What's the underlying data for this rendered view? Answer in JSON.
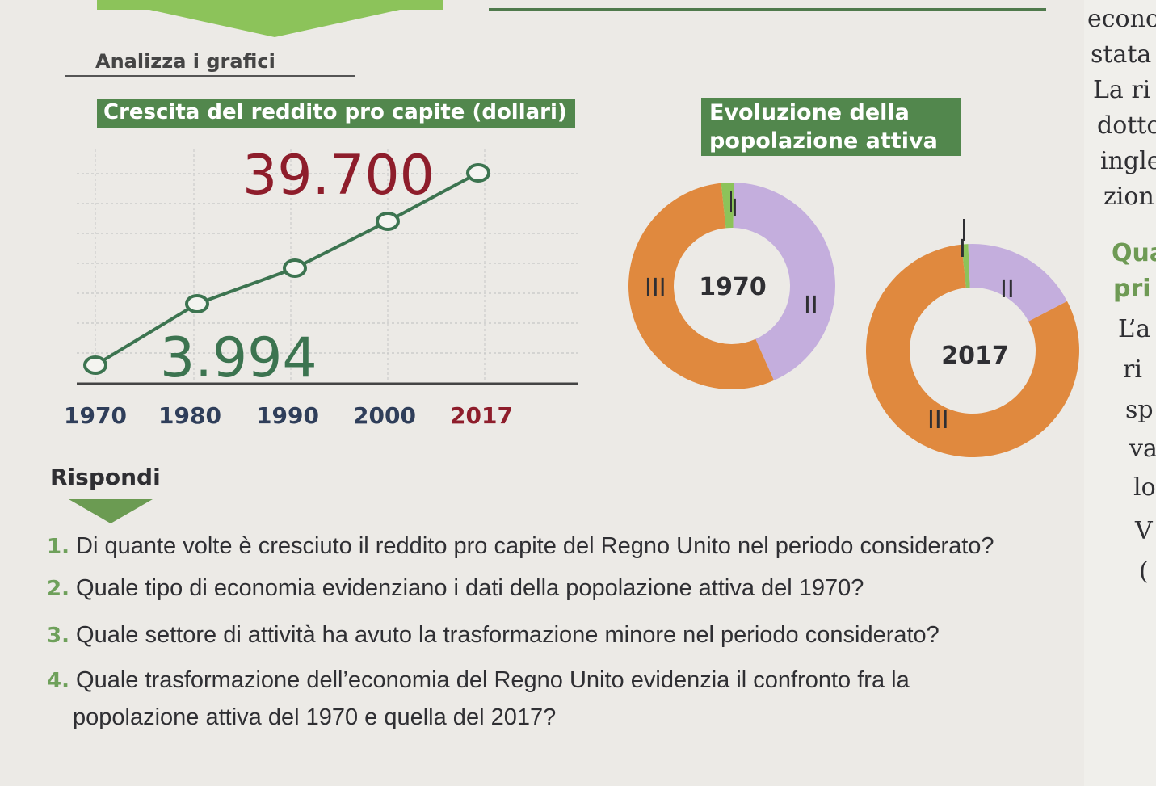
{
  "section": {
    "title": "Analizza i grafici"
  },
  "income_chart": {
    "title": "Crescita del reddito pro capite (dollari)",
    "label_start": "3.994",
    "label_end": "39.700"
  },
  "population_chart": {
    "title_line1": "Evoluzione della",
    "title_line2": "popolazione attiva",
    "donut_1970": {
      "year": "1970",
      "marks": [
        "I",
        "II",
        "III"
      ]
    },
    "donut_2017": {
      "year": "2017",
      "marks": [
        "I",
        "II",
        "III"
      ]
    }
  },
  "colors": {
    "title_green": "#52874d",
    "line_green": "#3c7450",
    "orange": "#e0893e",
    "lilac": "#c4aedd",
    "light_green": "#8cc35a",
    "highlight_red": "#8e1d2b"
  },
  "chart_data": [
    {
      "type": "line",
      "title": "Crescita del reddito pro capite (dollari)",
      "x": [
        "1970",
        "1980",
        "1990",
        "2000",
        "2017"
      ],
      "series": [
        {
          "values": [
            3994,
            10200,
            18800,
            28300,
            39700
          ]
        }
      ],
      "grid": true,
      "xlabels": [
        "1970",
        "1980",
        "1990",
        "2000",
        "2017"
      ],
      "point_labels": [
        "3.994",
        "",
        "",
        "",
        "39.700"
      ]
    },
    {
      "type": "pie",
      "title": "Evoluzione della popolazione attiva",
      "year": "1970",
      "categories": [
        "I",
        "II",
        "III"
      ],
      "values": [
        2,
        43,
        55
      ]
    },
    {
      "type": "pie",
      "year": "2017",
      "categories": [
        "I",
        "II",
        "III"
      ],
      "values": [
        1,
        18,
        81
      ]
    }
  ],
  "answer": {
    "heading": "Rispondi",
    "questions": [
      {
        "num": "1.",
        "text": "Di quante volte è cresciuto il reddito pro capite del Regno Unito nel periodo considerato?"
      },
      {
        "num": "2.",
        "text": "Quale tipo di economia evidenziano i dati della popolazione attiva del 1970?"
      },
      {
        "num": "3.",
        "text": "Quale settore di attività ha avuto la trasformazione minore nel periodo considerato?"
      },
      {
        "num": "4.",
        "text": "Quale trasformazione dell’economia del Regno Unito evidenzia il confronto fra la",
        "text2": "popolazione attiva del 1970 e quella del 2017?"
      }
    ]
  },
  "side_text": {
    "lines": [
      "econo",
      "stata",
      "La ri",
      "dotto",
      "ingle",
      "zion"
    ],
    "bold_lines": [
      "Qua",
      "pri"
    ],
    "lines2": [
      "L’a",
      "ri",
      "sp",
      "va",
      "lo",
      "V",
      "("
    ]
  }
}
